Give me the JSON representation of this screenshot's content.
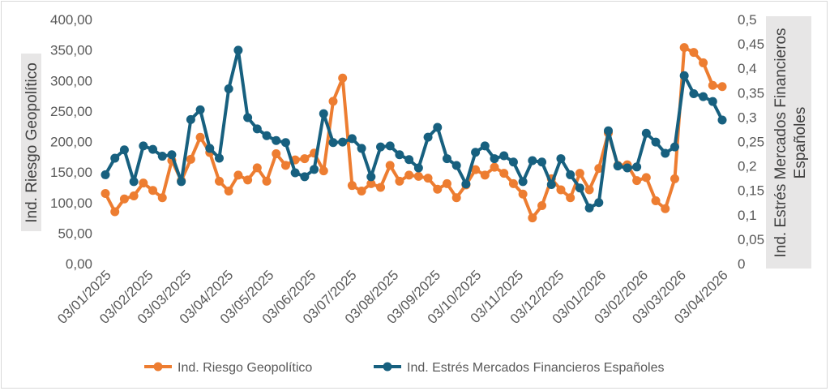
{
  "chart_data": {
    "type": "line",
    "title": "",
    "xlabel": "",
    "ylabel": "Ind. Riesgo Geopolítico",
    "y2label_lines": [
      "Ind. Estrés Mercados Financieros",
      "Españoles"
    ],
    "ylim": [
      0,
      400
    ],
    "y2lim": [
      0,
      0.5
    ],
    "yticks": [
      "0,00",
      "50,00",
      "100,00",
      "150,00",
      "200,00",
      "250,00",
      "300,00",
      "350,00",
      "400,00"
    ],
    "y2ticks": [
      "0",
      "0,05",
      "0,1",
      "0,15",
      "0,2",
      "0,25",
      "0,3",
      "0,35",
      "0,4",
      "0,45",
      "0,5"
    ],
    "xtick_labels": [
      "03/01/2025",
      "03/02/2025",
      "03/03/2025",
      "03/04/2025",
      "03/05/2025",
      "03/06/2025",
      "03/07/2025",
      "03/08/2025",
      "03/09/2025",
      "03/10/2025",
      "03/11/2025",
      "03/12/2025",
      "03/01/2026",
      "03/02/2026",
      "03/03/2026",
      "03/04/2026"
    ],
    "xtick_week_index": [
      0,
      4.43,
      8.43,
      12.86,
      17.14,
      21.57,
      25.86,
      30.29,
      34.71,
      39.0,
      43.43,
      47.71,
      52.14,
      56.57,
      60.57,
      65
    ],
    "x_frequency": "weekly, 03/01/2025 - 03/04/2026",
    "grid": false,
    "legend_position": "bottom",
    "series": [
      {
        "name": "Ind. Riesgo Geopolítico",
        "axis": "left",
        "color": "#ed7d31",
        "values": [
          115,
          85,
          106,
          111,
          132,
          120,
          108,
          169,
          136,
          171,
          207,
          182,
          135,
          119,
          145,
          137,
          157,
          135,
          180,
          161,
          170,
          172,
          181,
          152,
          266,
          304,
          128,
          119,
          131,
          125,
          161,
          135,
          145,
          143,
          140,
          122,
          131,
          108,
          129,
          154,
          145,
          158,
          148,
          131,
          114,
          75,
          95,
          139,
          121,
          108,
          148,
          121,
          156,
          214,
          161,
          162,
          136,
          141,
          103,
          90,
          139,
          354,
          346,
          329,
          292,
          290
        ]
      },
      {
        "name": "Ind. Estrés Mercados Financieros Españoles",
        "axis": "right",
        "color": "#17607f",
        "values": [
          0.182,
          0.216,
          0.233,
          0.168,
          0.241,
          0.234,
          0.22,
          0.223,
          0.168,
          0.295,
          0.315,
          0.236,
          0.216,
          0.358,
          0.437,
          0.299,
          0.276,
          0.262,
          0.252,
          0.248,
          0.186,
          0.178,
          0.193,
          0.307,
          0.248,
          0.249,
          0.256,
          0.236,
          0.178,
          0.239,
          0.241,
          0.223,
          0.213,
          0.196,
          0.259,
          0.279,
          0.215,
          0.201,
          0.163,
          0.228,
          0.241,
          0.215,
          0.221,
          0.208,
          0.168,
          0.211,
          0.208,
          0.162,
          0.215,
          0.182,
          0.155,
          0.114,
          0.125,
          0.272,
          0.2,
          0.196,
          0.198,
          0.267,
          0.249,
          0.226,
          0.239,
          0.385,
          0.348,
          0.342,
          0.332,
          0.294
        ]
      }
    ]
  }
}
